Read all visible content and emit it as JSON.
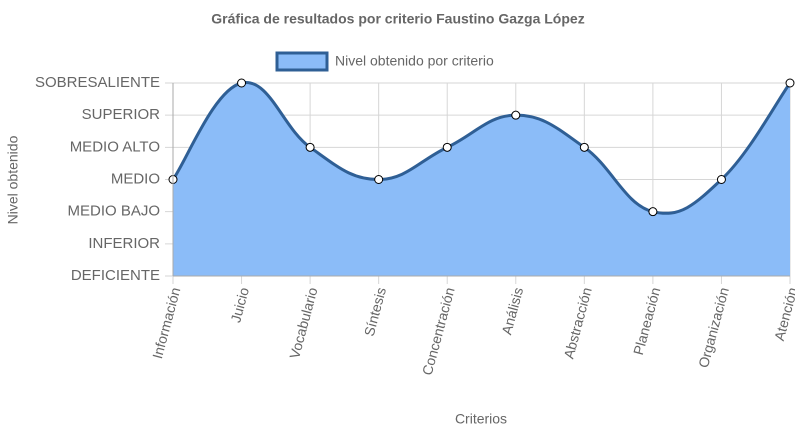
{
  "chart_data": {
    "type": "area",
    "title": "Gráfica de resultados por criterio Faustino Gazga López",
    "y_label": "Nivel obtenido",
    "x_label": "Criterios",
    "categories": [
      "Información",
      "Juicio",
      "Vocabulario",
      "Síntesis",
      "Concentración",
      "Análisis",
      "Abstracción",
      "Planeación",
      "Organización",
      "Atención"
    ],
    "series": [
      {
        "name": "Nivel obtenido por criterio",
        "color": "#2f5f95",
        "fill": "#8bbcf8",
        "values": [
          3,
          6,
          4,
          3,
          4,
          5,
          4,
          2,
          3,
          6
        ]
      }
    ],
    "ylim": [
      0,
      6
    ],
    "yticks": [
      {
        "value": 0,
        "label": "DEFICIENTE"
      },
      {
        "value": 1,
        "label": "INFERIOR"
      },
      {
        "value": 2,
        "label": "MEDIO BAJO"
      },
      {
        "value": 3,
        "label": "MEDIO"
      },
      {
        "value": 4,
        "label": "MEDIO ALTO"
      },
      {
        "value": 5,
        "label": "SUPERIOR"
      },
      {
        "value": 6,
        "label": "SOBRESALIENTE"
      }
    ],
    "grid": true
  }
}
